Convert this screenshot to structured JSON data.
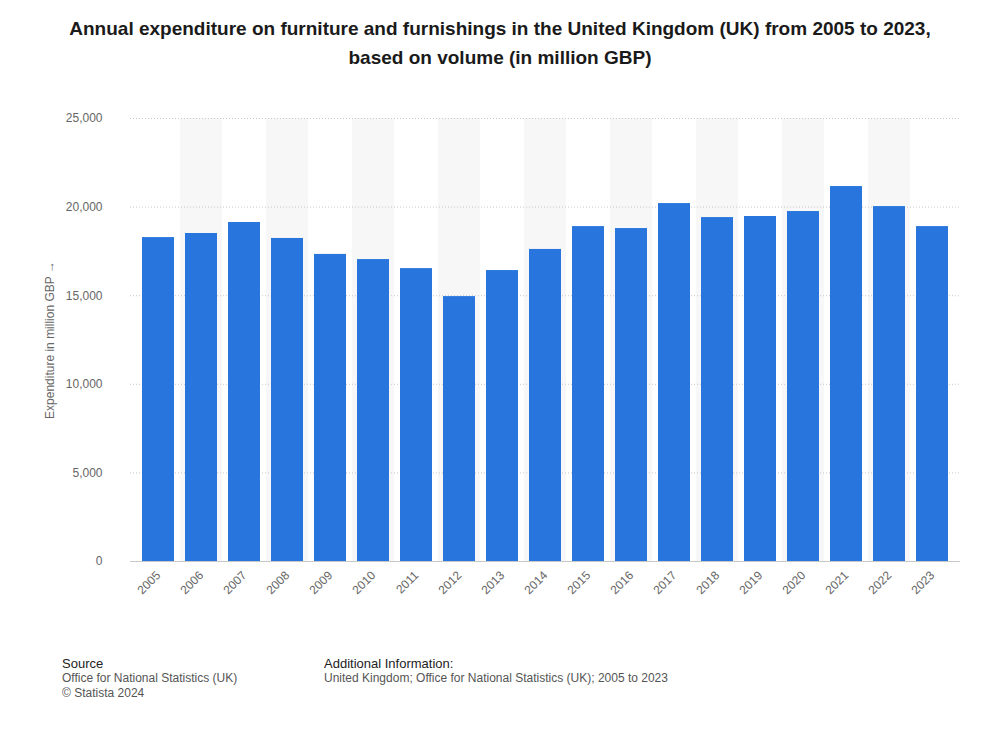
{
  "chart_data": {
    "type": "bar",
    "title": "Annual expenditure on furniture and furnishings in the United Kingdom (UK) from 2005 to 2023, based on volume (in million GBP)",
    "y_label": "Expenditure in million GBP",
    "categories": [
      "2005",
      "2006",
      "2007",
      "2008",
      "2009",
      "2010",
      "2011",
      "2012",
      "2013",
      "2014",
      "2015",
      "2016",
      "2017",
      "2018",
      "2019",
      "2020",
      "2021",
      "2022",
      "2023"
    ],
    "values": [
      18280,
      18510,
      19130,
      18230,
      17330,
      17040,
      16530,
      14950,
      16420,
      17610,
      18900,
      18790,
      20200,
      19410,
      19470,
      19750,
      21160,
      20030,
      18900
    ],
    "color": "#2876dd",
    "ylim": [
      0,
      25000
    ],
    "yticks": [
      0,
      {
        "value": 5000,
        "label": "5,000"
      },
      {
        "value": 10000,
        "label": "10,000"
      },
      {
        "value": 15000,
        "label": "15,000"
      },
      {
        "value": 20000,
        "label": "20,000"
      },
      {
        "value": 25000,
        "label": "25,000"
      }
    ],
    "grid": true,
    "source_label": "Source",
    "source": "Office for National Statistics (UK)",
    "copyright": "© Statista 2024",
    "info_label": "Additional Information:",
    "info": "United Kingdom; Office for National Statistics (UK); 2005 to 2023"
  }
}
